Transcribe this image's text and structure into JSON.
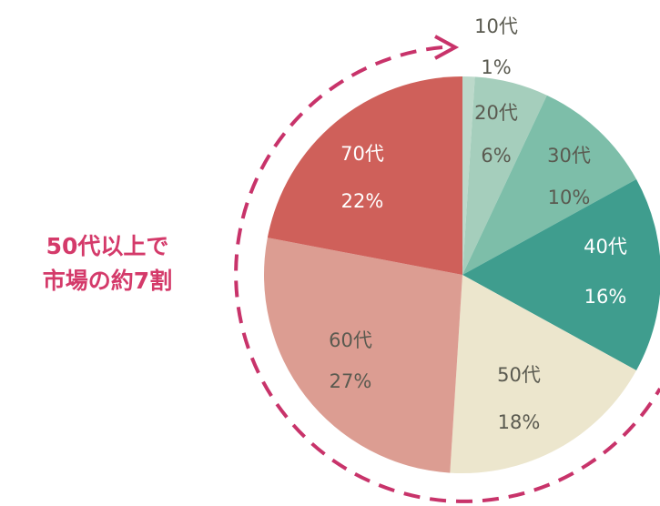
{
  "chart_data": {
    "type": "pie",
    "categories": [
      "10代",
      "20代",
      "30代",
      "40代",
      "50代",
      "60代",
      "70代"
    ],
    "values": [
      1,
      6,
      10,
      16,
      18,
      27,
      22
    ],
    "value_labels": [
      "1%",
      "6%",
      "10%",
      "16%",
      "18%",
      "27%",
      "22%"
    ],
    "colors": [
      "#bcd9ca",
      "#a5cebc",
      "#7dbea9",
      "#3f9d8e",
      "#ece6cd",
      "#dc9d92",
      "#cf605a"
    ],
    "annotation": [
      "50代以上で",
      "市場の約7割"
    ]
  }
}
